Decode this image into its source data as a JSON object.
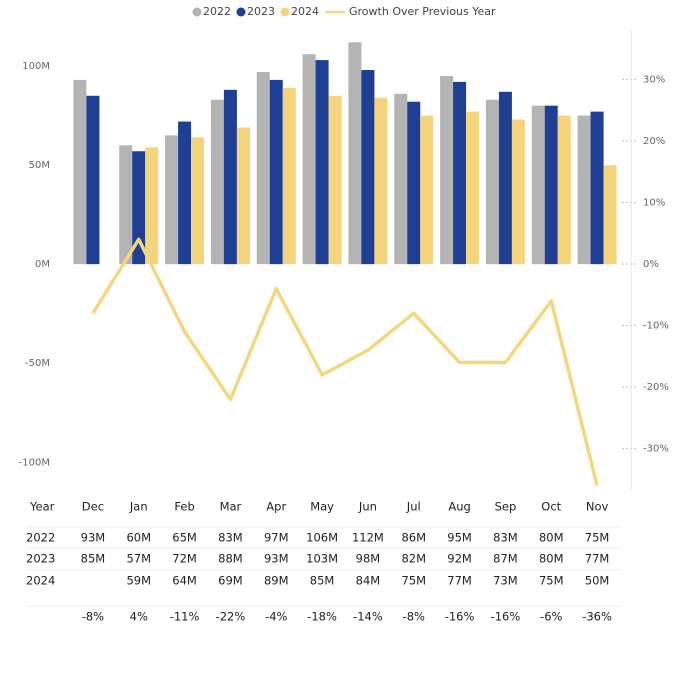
{
  "chart_data": {
    "type": "bar-line",
    "categories": [
      "Dec",
      "Jan",
      "Feb",
      "Mar",
      "Apr",
      "May",
      "Jun",
      "Jul",
      "Aug",
      "Sep",
      "Oct",
      "Nov"
    ],
    "series": [
      {
        "name": "2022",
        "color": "#b4b4b4",
        "values": [
          93,
          60,
          65,
          83,
          97,
          106,
          112,
          86,
          95,
          83,
          80,
          75
        ],
        "value_labels": [
          "93M",
          "60M",
          "65M",
          "83M",
          "97M",
          "106M",
          "112M",
          "86M",
          "95M",
          "83M",
          "80M",
          "75M"
        ]
      },
      {
        "name": "2023",
        "color": "#1f3f94",
        "values": [
          85,
          57,
          72,
          88,
          93,
          103,
          98,
          82,
          92,
          87,
          80,
          77
        ],
        "value_labels": [
          "85M",
          "57M",
          "72M",
          "88M",
          "93M",
          "103M",
          "98M",
          "82M",
          "92M",
          "87M",
          "80M",
          "77M"
        ]
      },
      {
        "name": "2024",
        "color": "#f5d47e",
        "values": [
          null,
          59,
          64,
          69,
          89,
          85,
          84,
          75,
          77,
          73,
          75,
          50
        ],
        "value_labels": [
          null,
          "59M",
          "64M",
          "69M",
          "89M",
          "85M",
          "84M",
          "75M",
          "77M",
          "73M",
          "75M",
          "50M"
        ]
      },
      {
        "name": "Growth Over Previous Year",
        "color": "#f3d77f",
        "axis": "y2",
        "type": "line",
        "values": [
          -8,
          4,
          -11,
          -22,
          -4,
          -18,
          -14,
          -8,
          -16,
          -16,
          -6,
          -36
        ],
        "value_labels": [
          "-8%",
          "4%",
          "-11%",
          "-22%",
          "-4%",
          "-18%",
          "-14%",
          "-8%",
          "-16%",
          "-16%",
          "-6%",
          "-36%"
        ]
      }
    ],
    "ylim": [
      -114,
      118.2
    ],
    "yticks": [
      {
        "value": 100,
        "label": "100M"
      },
      {
        "value": 50,
        "label": "50M"
      },
      {
        "value": 0,
        "label": "0M"
      },
      {
        "value": -50,
        "label": "-50M"
      },
      {
        "value": -100,
        "label": "-100M"
      }
    ],
    "y2lim": [
      -36.7,
      38
    ],
    "y2ticks": [
      {
        "value": 30,
        "label": "30%"
      },
      {
        "value": 20,
        "label": "20%"
      },
      {
        "value": 10,
        "label": "10%"
      },
      {
        "value": 0,
        "label": "0%"
      },
      {
        "value": -10,
        "label": "-10%"
      },
      {
        "value": -20,
        "label": "-20%"
      },
      {
        "value": -30,
        "label": "-30%"
      }
    ],
    "legend": "top",
    "table_header": "Year"
  }
}
